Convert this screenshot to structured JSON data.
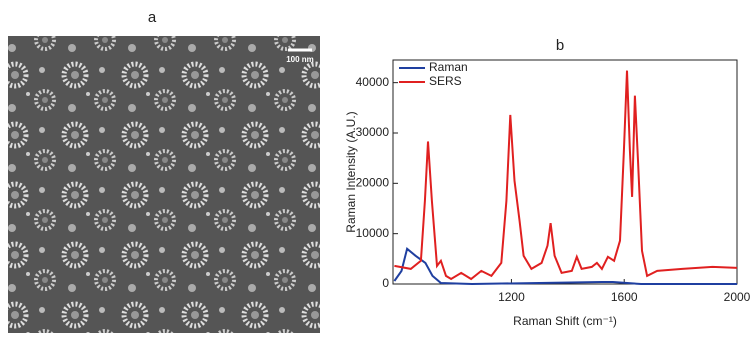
{
  "panel_a": {
    "label": "a",
    "scale_bar": "100 nm"
  },
  "chart_data": {
    "type": "line",
    "title": "b",
    "xlabel": "Raman Shift (cm⁻¹)",
    "ylabel": "Raman Intensity (A.U.)",
    "xlim": [
      780,
      2000
    ],
    "ylim": [
      0,
      44500
    ],
    "xticks": [
      1200,
      1600,
      2000
    ],
    "yticks": [
      0,
      10000,
      20000,
      30000,
      40000
    ],
    "legend": "upper left",
    "series": [
      {
        "name": "Raman",
        "color": "#1f3fa0",
        "x": [
          785,
          810,
          830,
          860,
          895,
          920,
          950,
          1060,
          1520,
          1560,
          1660,
          2000
        ],
        "values": [
          600,
          2600,
          7000,
          5600,
          4200,
          1600,
          200,
          0,
          400,
          400,
          0,
          0
        ]
      },
      {
        "name": "SERS",
        "color": "#e02020",
        "x": [
          785,
          843,
          879,
          893,
          904,
          918,
          936,
          950,
          968,
          986,
          1022,
          1057,
          1093,
          1129,
          1164,
          1182,
          1196,
          1211,
          1229,
          1243,
          1271,
          1307,
          1328,
          1339,
          1353,
          1378,
          1414,
          1432,
          1449,
          1485,
          1503,
          1521,
          1542,
          1564,
          1585,
          1599,
          1610,
          1620,
          1628,
          1638,
          1649,
          1663,
          1681,
          1717,
          1806,
          1913,
          2000
        ],
        "values": [
          3600,
          3000,
          4600,
          16500,
          28300,
          16500,
          3600,
          4600,
          1600,
          1000,
          2200,
          1000,
          2600,
          1600,
          4200,
          16500,
          33600,
          20500,
          12500,
          5600,
          3000,
          4200,
          7600,
          12100,
          5600,
          2200,
          2600,
          5400,
          3000,
          3400,
          4200,
          3000,
          5400,
          4600,
          8600,
          26500,
          42400,
          26500,
          17300,
          37400,
          24500,
          6600,
          1600,
          2600,
          3000,
          3400,
          3200
        ]
      }
    ]
  }
}
